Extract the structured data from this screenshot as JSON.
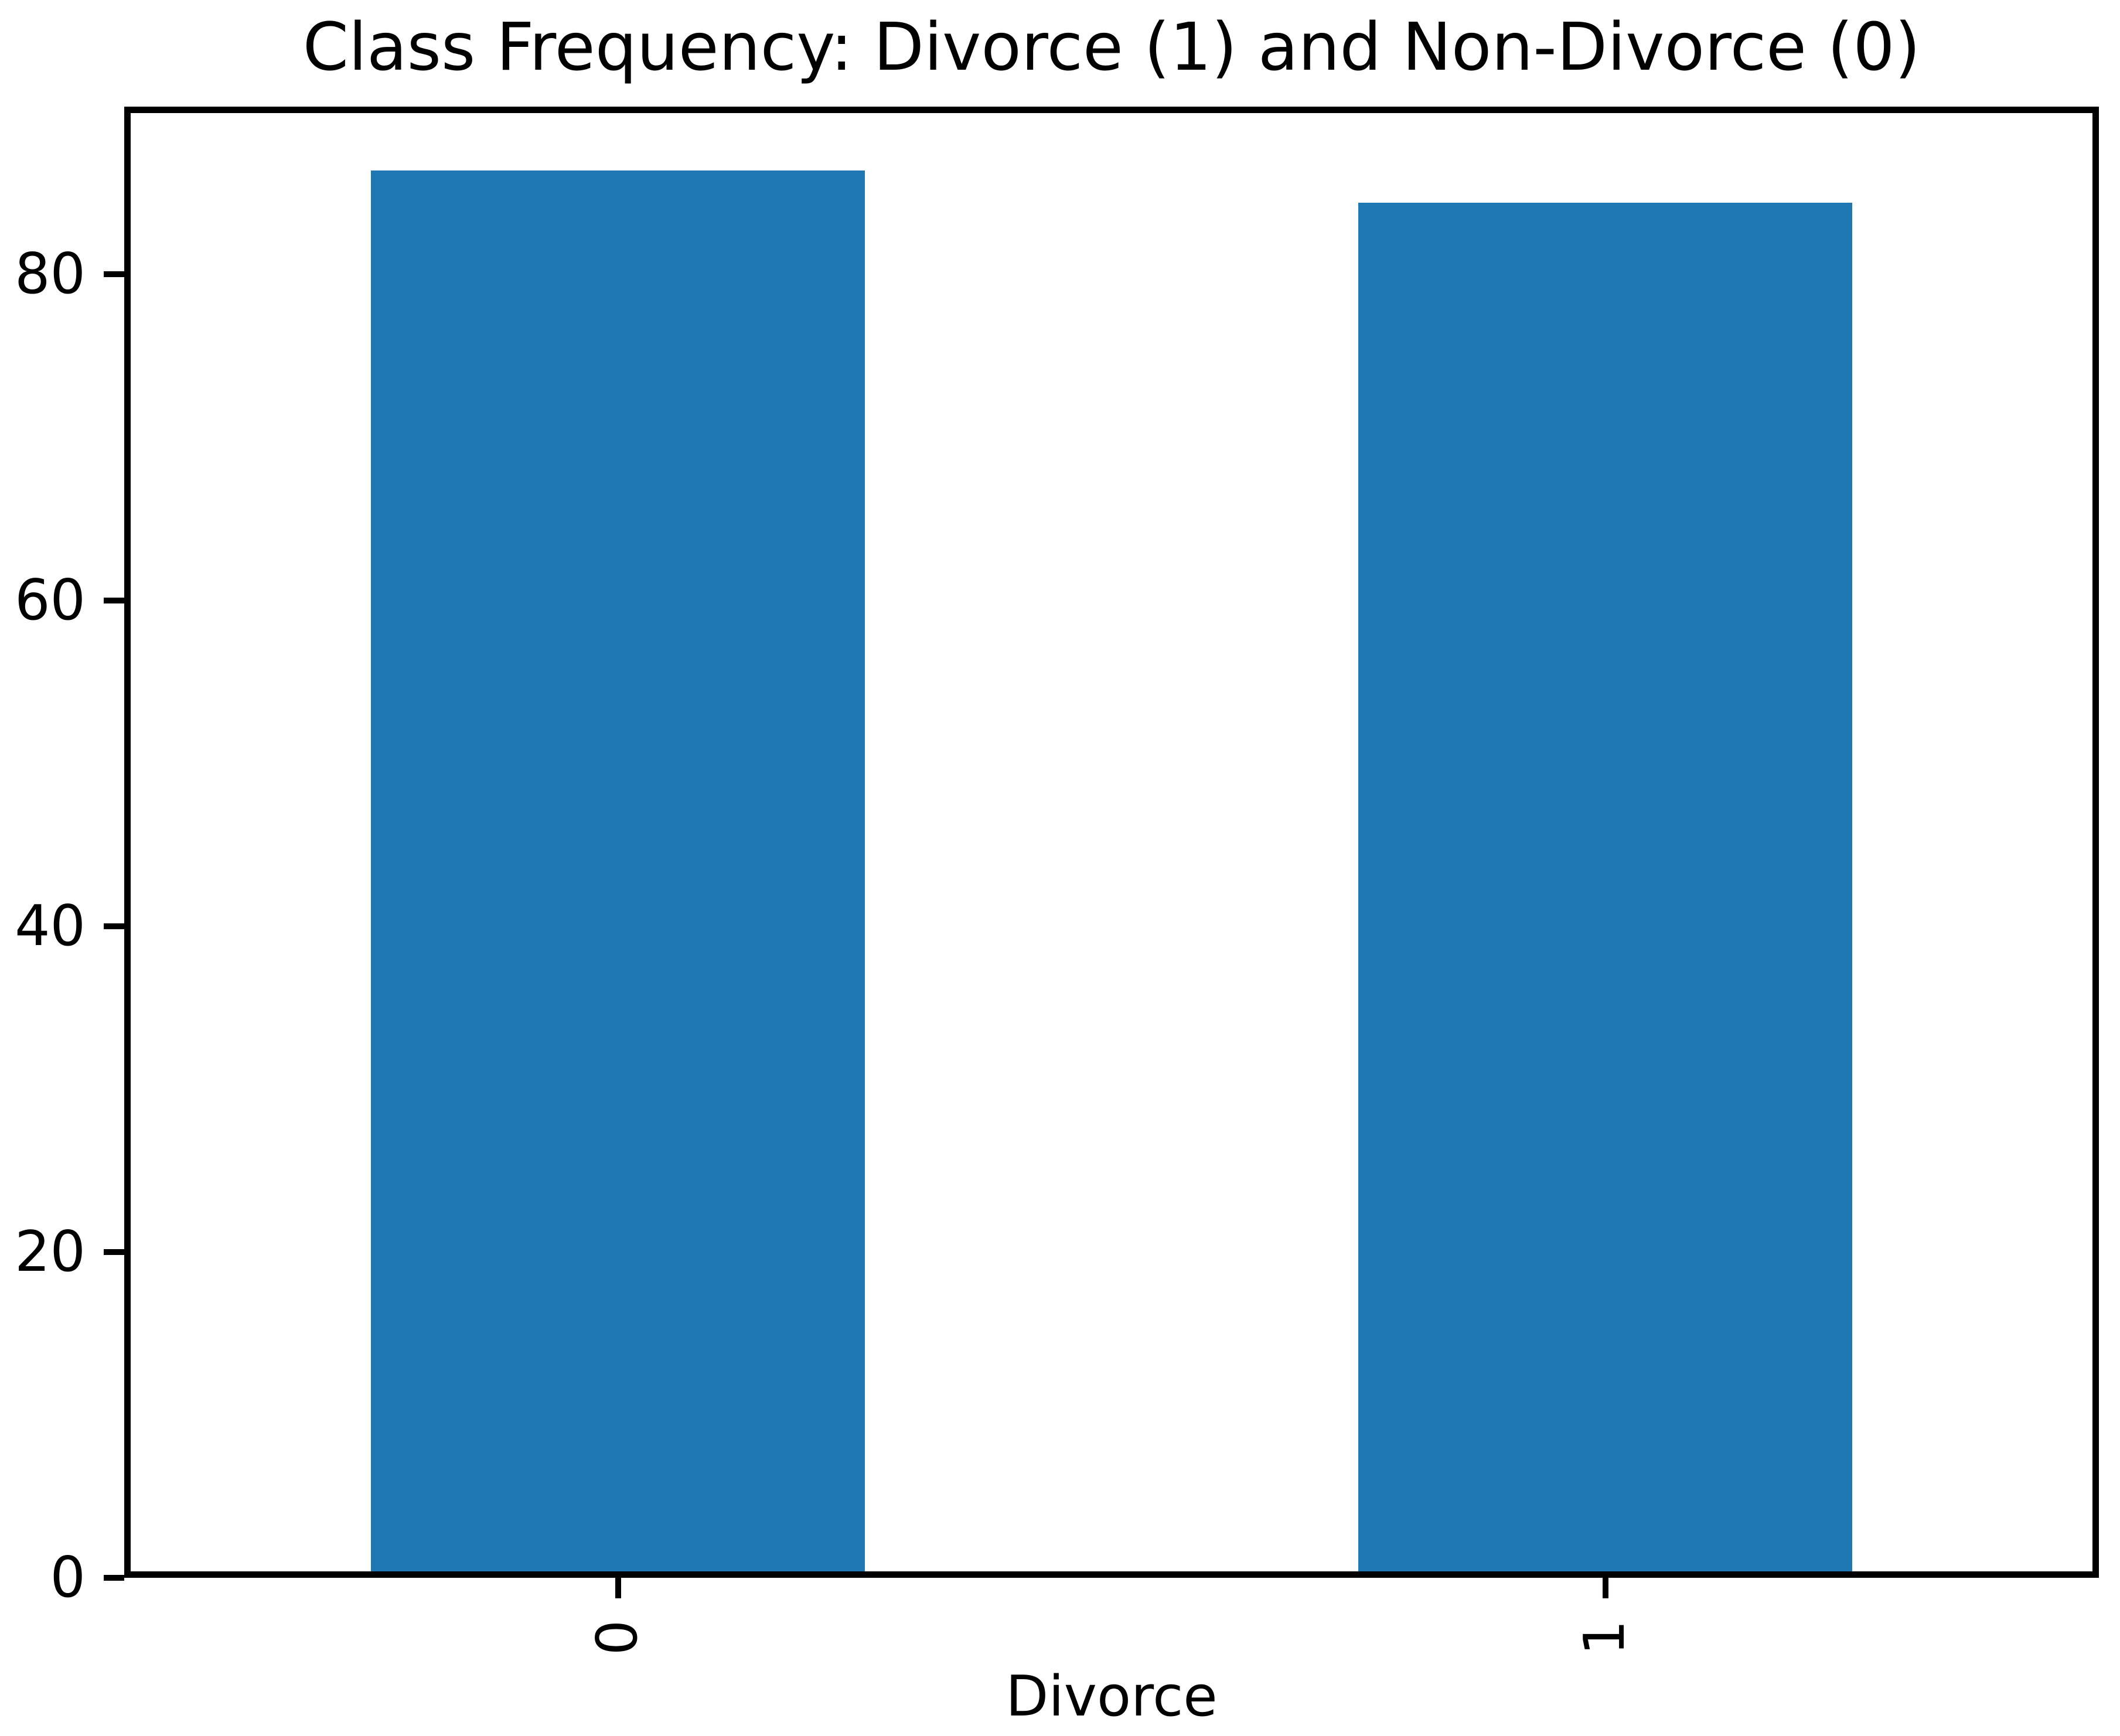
{
  "figure": {
    "background": "#ffffff",
    "text_color": "#000000",
    "spine_color": "#000000"
  },
  "chart_data": {
    "type": "bar",
    "title": "Class Frequency: Divorce (1) and Non-Divorce (0)",
    "xlabel": "Divorce",
    "ylabel": "",
    "categories": [
      "0",
      "1"
    ],
    "values": [
      86,
      84
    ],
    "yticks": [
      0,
      20,
      40,
      60,
      80
    ],
    "ylim": [
      0,
      90.3
    ],
    "xlim": [
      -0.5,
      1.5
    ],
    "bar_width": 0.5,
    "bar_color": "#1f77b4",
    "grid": false,
    "legend_position": "none",
    "xtick_rotation_deg": 90
  }
}
